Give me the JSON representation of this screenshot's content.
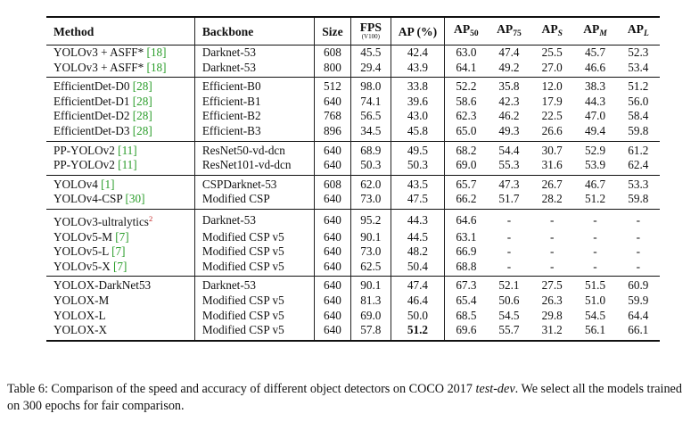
{
  "headers": {
    "method": "Method",
    "backbone": "Backbone",
    "size": "Size",
    "fps": "FPS",
    "fps_sub": "(V100)",
    "ap": "AP (%)",
    "ap50_base": "AP",
    "ap50_sub": "50",
    "ap75_base": "AP",
    "ap75_sub": "75",
    "aps_base": "AP",
    "aps_sub": "S",
    "apm_base": "AP",
    "apm_sub": "M",
    "apl_base": "AP",
    "apl_sub": "L"
  },
  "groups": [
    {
      "rows": [
        {
          "method": "YOLOv3 + ASFF*",
          "cite": "[18]",
          "sup": "",
          "backbone": "Darknet-53",
          "size": "608",
          "fps": "45.5",
          "ap": "42.4",
          "ap50": "63.0",
          "ap75": "47.4",
          "aps": "25.5",
          "apm": "45.7",
          "apl": "52.3"
        },
        {
          "method": "YOLOv3 + ASFF*",
          "cite": "[18]",
          "sup": "",
          "backbone": "Darknet-53",
          "size": "800",
          "fps": "29.4",
          "ap": "43.9",
          "ap50": "64.1",
          "ap75": "49.2",
          "aps": "27.0",
          "apm": "46.6",
          "apl": "53.4"
        }
      ]
    },
    {
      "rows": [
        {
          "method": "EfficientDet-D0",
          "cite": "[28]",
          "sup": "",
          "backbone": "Efficient-B0",
          "size": "512",
          "fps": "98.0",
          "ap": "33.8",
          "ap50": "52.2",
          "ap75": "35.8",
          "aps": "12.0",
          "apm": "38.3",
          "apl": "51.2"
        },
        {
          "method": "EfficientDet-D1",
          "cite": "[28]",
          "sup": "",
          "backbone": "Efficient-B1",
          "size": "640",
          "fps": "74.1",
          "ap": "39.6",
          "ap50": "58.6",
          "ap75": "42.3",
          "aps": "17.9",
          "apm": "44.3",
          "apl": "56.0"
        },
        {
          "method": "EfficientDet-D2",
          "cite": "[28]",
          "sup": "",
          "backbone": "Efficient-B2",
          "size": "768",
          "fps": "56.5",
          "ap": "43.0",
          "ap50": "62.3",
          "ap75": "46.2",
          "aps": "22.5",
          "apm": "47.0",
          "apl": "58.4"
        },
        {
          "method": "EfficientDet-D3",
          "cite": "[28]",
          "sup": "",
          "backbone": "Efficient-B3",
          "size": "896",
          "fps": "34.5",
          "ap": "45.8",
          "ap50": "65.0",
          "ap75": "49.3",
          "aps": "26.6",
          "apm": "49.4",
          "apl": "59.8"
        }
      ]
    },
    {
      "rows": [
        {
          "method": "PP-YOLOv2",
          "cite": "[11]",
          "sup": "",
          "backbone": "ResNet50-vd-dcn",
          "size": "640",
          "fps": "68.9",
          "ap": "49.5",
          "ap50": "68.2",
          "ap75": "54.4",
          "aps": "30.7",
          "apm": "52.9",
          "apl": "61.2"
        },
        {
          "method": "PP-YOLOv2",
          "cite": "[11]",
          "sup": "",
          "backbone": "ResNet101-vd-dcn",
          "size": "640",
          "fps": "50.3",
          "ap": "50.3",
          "ap50": "69.0",
          "ap75": "55.3",
          "aps": "31.6",
          "apm": "53.9",
          "apl": "62.4"
        }
      ]
    },
    {
      "rows": [
        {
          "method": "YOLOv4",
          "cite": "[1]",
          "sup": "",
          "backbone": "CSPDarknet-53",
          "size": "608",
          "fps": "62.0",
          "ap": "43.5",
          "ap50": "65.7",
          "ap75": "47.3",
          "aps": "26.7",
          "apm": "46.7",
          "apl": "53.3"
        },
        {
          "method": "YOLOv4-CSP",
          "cite": "[30]",
          "sup": "",
          "backbone": "Modified CSP",
          "size": "640",
          "fps": "73.0",
          "ap": "47.5",
          "ap50": "66.2",
          "ap75": "51.7",
          "aps": "28.2",
          "apm": "51.2",
          "apl": "59.8"
        }
      ]
    },
    {
      "rows": [
        {
          "method": "YOLOv3-ultralytics",
          "cite": "",
          "sup": "2",
          "backbone": "Darknet-53",
          "size": "640",
          "fps": "95.2",
          "ap": "44.3",
          "ap50": "64.6",
          "ap75": "-",
          "aps": "-",
          "apm": "-",
          "apl": "-"
        },
        {
          "method": "YOLOv5-M",
          "cite": "[7]",
          "sup": "",
          "backbone": "Modified CSP v5",
          "size": "640",
          "fps": "90.1",
          "ap": "44.5",
          "ap50": "63.1",
          "ap75": "-",
          "aps": "-",
          "apm": "-",
          "apl": "-"
        },
        {
          "method": "YOLOv5-L",
          "cite": "[7]",
          "sup": "",
          "backbone": "Modified CSP v5",
          "size": "640",
          "fps": "73.0",
          "ap": "48.2",
          "ap50": "66.9",
          "ap75": "-",
          "aps": "-",
          "apm": "-",
          "apl": "-"
        },
        {
          "method": "YOLOv5-X",
          "cite": "[7]",
          "sup": "",
          "backbone": "Modified CSP v5",
          "size": "640",
          "fps": "62.5",
          "ap": "50.4",
          "ap50": "68.8",
          "ap75": "-",
          "aps": "-",
          "apm": "-",
          "apl": "-"
        }
      ]
    },
    {
      "rows": [
        {
          "method": "YOLOX-DarkNet53",
          "cite": "",
          "sup": "",
          "backbone": "Darknet-53",
          "size": "640",
          "fps": "90.1",
          "ap": "47.4",
          "ap50": "67.3",
          "ap75": "52.1",
          "aps": "27.5",
          "apm": "51.5",
          "apl": "60.9"
        },
        {
          "method": "YOLOX-M",
          "cite": "",
          "sup": "",
          "backbone": "Modified CSP v5",
          "size": "640",
          "fps": "81.3",
          "ap": "46.4",
          "ap50": "65.4",
          "ap75": "50.6",
          "aps": "26.3",
          "apm": "51.0",
          "apl": "59.9"
        },
        {
          "method": "YOLOX-L",
          "cite": "",
          "sup": "",
          "backbone": "Modified CSP v5",
          "size": "640",
          "fps": "69.0",
          "ap": "50.0",
          "ap50": "68.5",
          "ap75": "54.5",
          "aps": "29.8",
          "apm": "54.5",
          "apl": "64.4"
        },
        {
          "method": "YOLOX-X",
          "cite": "",
          "sup": "",
          "backbone": "Modified CSP v5",
          "size": "640",
          "fps": "57.8",
          "ap": "51.2",
          "ap_bold": true,
          "ap50": "69.6",
          "ap75": "55.7",
          "aps": "31.2",
          "apm": "56.1",
          "apl": "66.1"
        }
      ]
    }
  ],
  "caption": {
    "prefix": "Table 6: Comparison of the speed and accuracy of different object detectors on COCO 2017 ",
    "italic": "test-dev",
    "suffix": ". We select all the models trained on 300 epochs for fair comparison."
  }
}
